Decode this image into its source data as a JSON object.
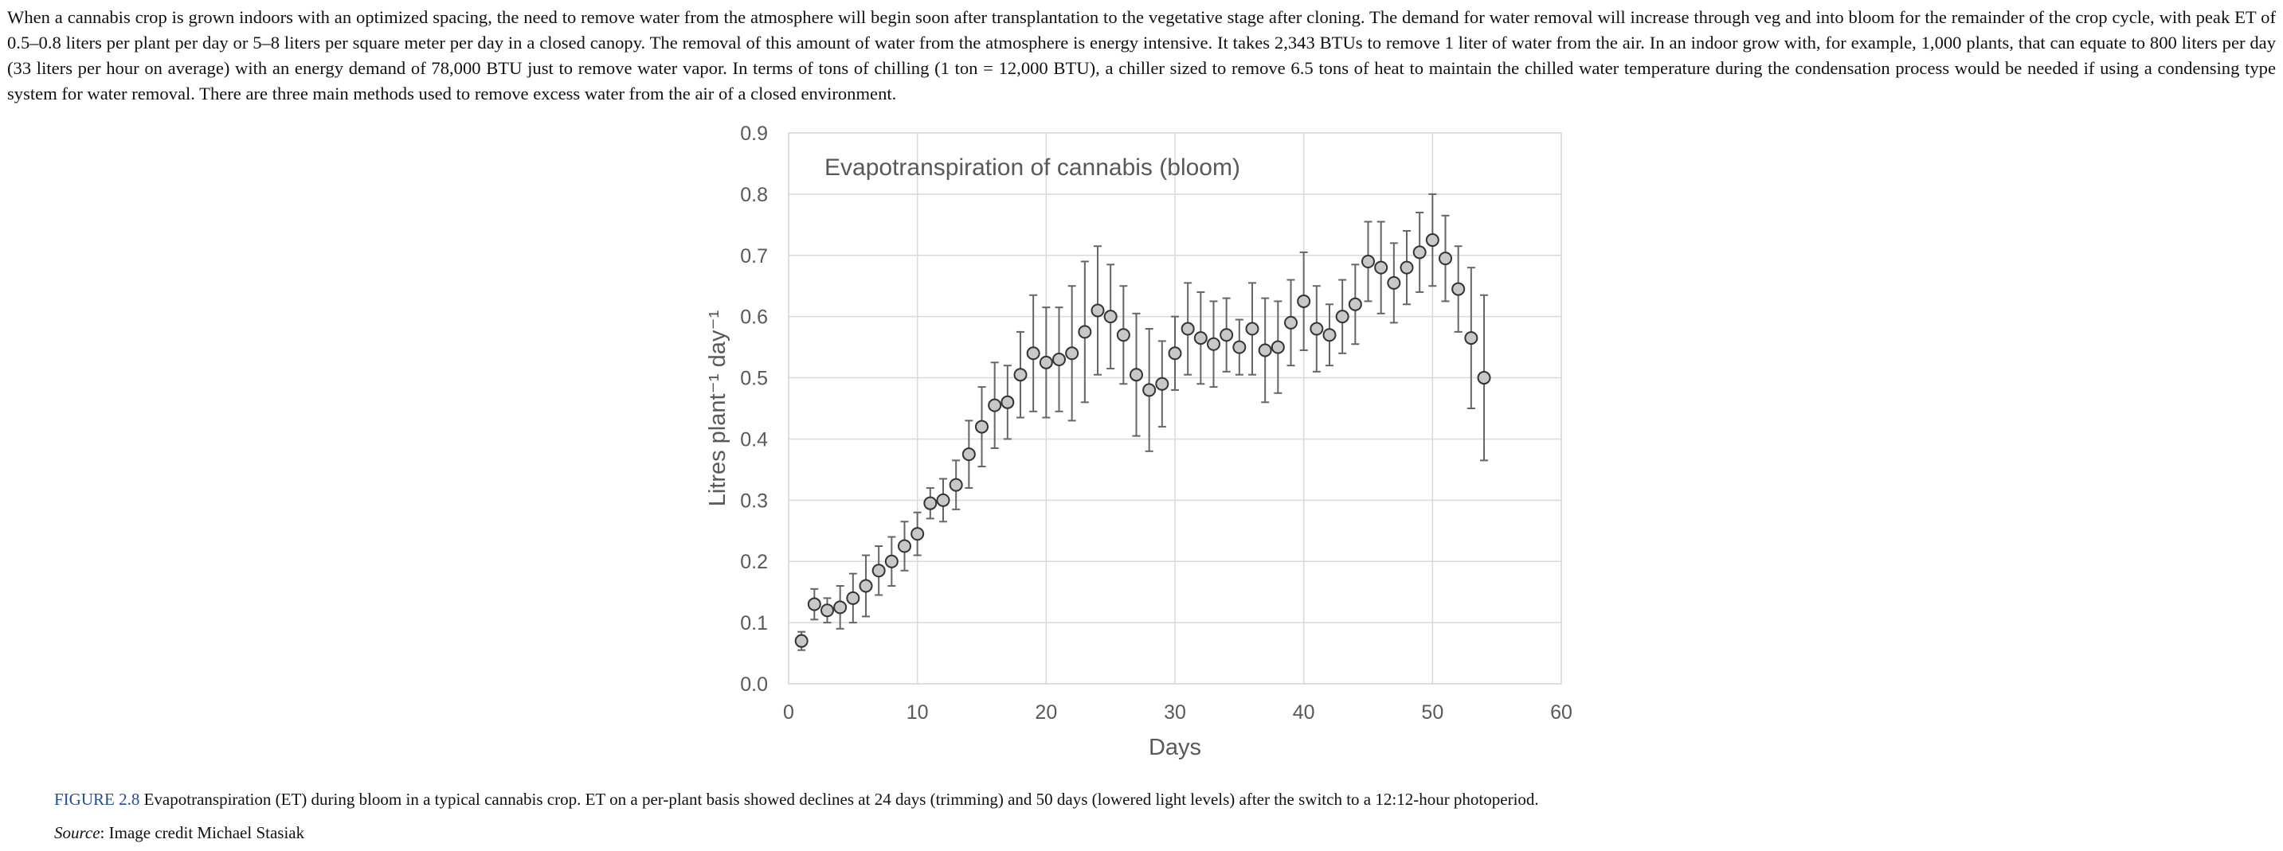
{
  "paragraph": "When a cannabis crop is grown indoors with an optimized spacing, the need to remove water from the atmosphere will begin soon after transplantation to the vegetative stage after cloning. The demand for water removal will increase through veg and into bloom for the remainder of the crop cycle, with peak ET of 0.5–0.8 liters per plant per day or 5–8 liters per square meter per day in a closed canopy. The removal of this amount of water from the atmosphere is energy intensive. It takes 2,343 BTUs to remove 1 liter of water from the air. In an indoor grow with, for example, 1,000 plants, that can equate to 800 liters per day (33 liters per hour on average) with an energy demand of 78,000 BTU just to remove water vapor. In terms of tons of chilling (1 ton = 12,000 BTU), a chiller sized to remove 6.5 tons of heat to maintain the chilled water temperature during the condensation process would be needed if using a condensing type system for water removal. There are three main methods used to remove excess water from the air of a closed environment.",
  "figure": {
    "label": "FIGURE 2.8",
    "caption": " Evapotranspiration (ET) during bloom in a typical cannabis crop. ET on a per-plant basis showed declines at 24 days (trimming) and 50 days (lowered light levels) after the switch to a 12:12-hour photoperiod.",
    "source_label": "Source",
    "source_text": ": Image credit Michael Stasiak"
  },
  "chart_data": {
    "type": "scatter",
    "title": "Evapotranspiration of cannabis (bloom)",
    "xlabel": "Days",
    "ylabel": "Litres plant⁻¹ day⁻¹",
    "xlim": [
      0,
      60
    ],
    "ylim": [
      0,
      0.9
    ],
    "xticks": [
      0,
      10,
      20,
      30,
      40,
      50,
      60
    ],
    "yticks": [
      0.0,
      0.1,
      0.2,
      0.3,
      0.4,
      0.5,
      0.6,
      0.7,
      0.8,
      0.9
    ],
    "ytick_labels": [
      "0.0",
      "0.1",
      "0.2",
      "0.3",
      "0.4",
      "0.5",
      "0.6",
      "0.7",
      "0.8",
      "0.9"
    ],
    "grid": true,
    "error_bars": true,
    "marker_fill": "#c8c8c8",
    "marker_edge": "#333333",
    "errorbar_color": "#666666",
    "gridline_color": "#d9d9d9",
    "text_color": "#595959",
    "points": [
      {
        "x": 1,
        "y": 0.07,
        "err": 0.015
      },
      {
        "x": 2,
        "y": 0.13,
        "err": 0.025
      },
      {
        "x": 3,
        "y": 0.12,
        "err": 0.02
      },
      {
        "x": 4,
        "y": 0.125,
        "err": 0.035
      },
      {
        "x": 5,
        "y": 0.14,
        "err": 0.04
      },
      {
        "x": 6,
        "y": 0.16,
        "err": 0.05
      },
      {
        "x": 7,
        "y": 0.185,
        "err": 0.04
      },
      {
        "x": 8,
        "y": 0.2,
        "err": 0.04
      },
      {
        "x": 9,
        "y": 0.225,
        "err": 0.04
      },
      {
        "x": 10,
        "y": 0.245,
        "err": 0.035
      },
      {
        "x": 11,
        "y": 0.295,
        "err": 0.025
      },
      {
        "x": 12,
        "y": 0.3,
        "err": 0.035
      },
      {
        "x": 13,
        "y": 0.325,
        "err": 0.04
      },
      {
        "x": 14,
        "y": 0.375,
        "err": 0.055
      },
      {
        "x": 15,
        "y": 0.42,
        "err": 0.065
      },
      {
        "x": 16,
        "y": 0.455,
        "err": 0.07
      },
      {
        "x": 17,
        "y": 0.46,
        "err": 0.06
      },
      {
        "x": 18,
        "y": 0.505,
        "err": 0.07
      },
      {
        "x": 19,
        "y": 0.54,
        "err": 0.095
      },
      {
        "x": 20,
        "y": 0.525,
        "err": 0.09
      },
      {
        "x": 21,
        "y": 0.53,
        "err": 0.085
      },
      {
        "x": 22,
        "y": 0.54,
        "err": 0.11
      },
      {
        "x": 23,
        "y": 0.575,
        "err": 0.115
      },
      {
        "x": 24,
        "y": 0.61,
        "err": 0.105
      },
      {
        "x": 25,
        "y": 0.6,
        "err": 0.085
      },
      {
        "x": 26,
        "y": 0.57,
        "err": 0.08
      },
      {
        "x": 27,
        "y": 0.505,
        "err": 0.1
      },
      {
        "x": 28,
        "y": 0.48,
        "err": 0.1
      },
      {
        "x": 29,
        "y": 0.49,
        "err": 0.07
      },
      {
        "x": 30,
        "y": 0.54,
        "err": 0.06
      },
      {
        "x": 31,
        "y": 0.58,
        "err": 0.075
      },
      {
        "x": 32,
        "y": 0.565,
        "err": 0.075
      },
      {
        "x": 33,
        "y": 0.555,
        "err": 0.07
      },
      {
        "x": 34,
        "y": 0.57,
        "err": 0.06
      },
      {
        "x": 35,
        "y": 0.55,
        "err": 0.045
      },
      {
        "x": 36,
        "y": 0.58,
        "err": 0.075
      },
      {
        "x": 37,
        "y": 0.545,
        "err": 0.085
      },
      {
        "x": 38,
        "y": 0.55,
        "err": 0.075
      },
      {
        "x": 39,
        "y": 0.59,
        "err": 0.07
      },
      {
        "x": 40,
        "y": 0.625,
        "err": 0.08
      },
      {
        "x": 41,
        "y": 0.58,
        "err": 0.07
      },
      {
        "x": 42,
        "y": 0.57,
        "err": 0.05
      },
      {
        "x": 43,
        "y": 0.6,
        "err": 0.06
      },
      {
        "x": 44,
        "y": 0.62,
        "err": 0.065
      },
      {
        "x": 45,
        "y": 0.69,
        "err": 0.065
      },
      {
        "x": 46,
        "y": 0.68,
        "err": 0.075
      },
      {
        "x": 47,
        "y": 0.655,
        "err": 0.065
      },
      {
        "x": 48,
        "y": 0.68,
        "err": 0.06
      },
      {
        "x": 49,
        "y": 0.705,
        "err": 0.065
      },
      {
        "x": 50,
        "y": 0.725,
        "err": 0.075
      },
      {
        "x": 51,
        "y": 0.695,
        "err": 0.07
      },
      {
        "x": 52,
        "y": 0.645,
        "err": 0.07
      },
      {
        "x": 53,
        "y": 0.565,
        "err": 0.115
      },
      {
        "x": 54,
        "y": 0.5,
        "err": 0.135
      }
    ]
  }
}
